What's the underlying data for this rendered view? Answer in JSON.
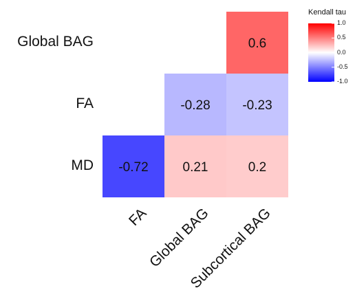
{
  "chart_data": {
    "type": "heatmap",
    "title": "",
    "rows": [
      "Global BAG",
      "FA",
      "MD"
    ],
    "columns": [
      "FA",
      "Global BAG",
      "Subcortical BAG"
    ],
    "cells": [
      {
        "row": "Global BAG",
        "column": "Subcortical BAG",
        "value": 0.6,
        "label": "0.6"
      },
      {
        "row": "FA",
        "column": "Global BAG",
        "value": -0.28,
        "label": "-0.28"
      },
      {
        "row": "FA",
        "column": "Subcortical BAG",
        "value": -0.23,
        "label": "-0.23"
      },
      {
        "row": "MD",
        "column": "FA",
        "value": -0.72,
        "label": "-0.72"
      },
      {
        "row": "MD",
        "column": "Global BAG",
        "value": 0.21,
        "label": "0.21"
      },
      {
        "row": "MD",
        "column": "Subcortical BAG",
        "value": 0.2,
        "label": "0.2"
      }
    ],
    "legend": {
      "title": "Kendall tau",
      "ticks": [
        {
          "value": 1.0,
          "label": "1.0"
        },
        {
          "value": 0.5,
          "label": "0.5"
        },
        {
          "value": 0.0,
          "label": "0.0"
        },
        {
          "value": -0.5,
          "label": "-0.5"
        },
        {
          "value": -1.0,
          "label": "-1.0"
        }
      ],
      "range": [
        -1.0,
        1.0
      ],
      "placement": "top-right"
    },
    "colors": {
      "low": "#0000ff",
      "mid": "#ffffff",
      "high": "#ff0000"
    },
    "grid": false
  }
}
